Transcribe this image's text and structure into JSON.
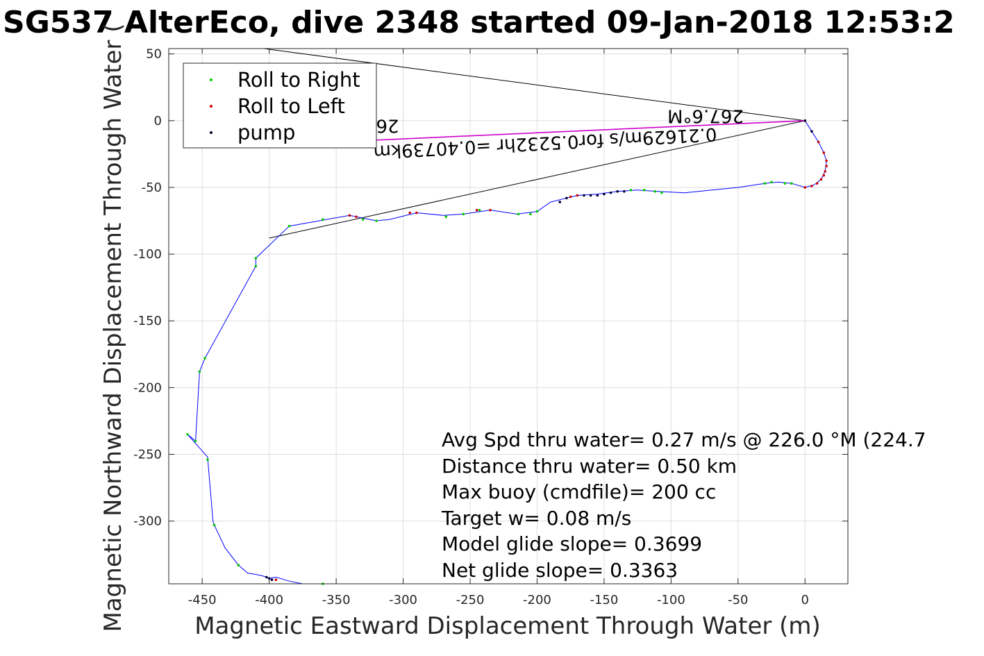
{
  "colors": {
    "track": "#0000ff",
    "roll_right": "#00cc00",
    "roll_left": "#cc0000",
    "pump": "#000033",
    "current_vector": "#cc00cc",
    "grid": "#dddddd",
    "axes": "#262626"
  },
  "chart_data": {
    "type": "line",
    "title": "SG537 AlterEco, dive 2348 started 09-Jan-2018 12:53:2",
    "xlabel": "Magnetic Eastward Displacement Through Water (m)",
    "ylabel": "Magnetic Northward Displacement Through Water (",
    "xlim": [
      -475,
      32
    ],
    "ylim": [
      -347,
      54
    ],
    "xticks": [
      -450,
      -400,
      -350,
      -300,
      -250,
      -200,
      -150,
      -100,
      -50,
      0
    ],
    "yticks": [
      50,
      0,
      -50,
      -100,
      -150,
      -200,
      -250,
      -300
    ],
    "xtick_labels": [
      "-450",
      "-400",
      "-350",
      "-300",
      "-250",
      "-200",
      "-150",
      "-100",
      "-50",
      "0"
    ],
    "ytick_labels": [
      "50",
      "0",
      "-50",
      "-100",
      "-150",
      "-200",
      "-250",
      "-300"
    ],
    "grid": true,
    "legend": {
      "placement": "top-left",
      "entries": [
        {
          "label": "Roll to Right",
          "color": "#00cc00"
        },
        {
          "label": "Roll to Left",
          "color": "#cc0000"
        },
        {
          "label": "pump",
          "color": "#000033"
        }
      ]
    },
    "series": [
      {
        "name": "track",
        "points": [
          [
            0,
            0
          ],
          [
            5,
            -8
          ],
          [
            10,
            -16
          ],
          [
            14,
            -24
          ],
          [
            16,
            -30
          ],
          [
            15,
            -38
          ],
          [
            12,
            -44
          ],
          [
            7,
            -48
          ],
          [
            0,
            -50
          ],
          [
            -10,
            -47
          ],
          [
            -20,
            -46
          ],
          [
            -30,
            -47
          ],
          [
            -50,
            -50
          ],
          [
            -90,
            -54
          ],
          [
            -110,
            -53
          ],
          [
            -125,
            -52
          ],
          [
            -140,
            -53
          ],
          [
            -155,
            -55
          ],
          [
            -170,
            -56
          ],
          [
            -178,
            -58
          ],
          [
            -190,
            -61
          ],
          [
            -200,
            -68
          ],
          [
            -215,
            -70
          ],
          [
            -235,
            -67
          ],
          [
            -255,
            -70
          ],
          [
            -270,
            -71
          ],
          [
            -290,
            -69
          ],
          [
            -310,
            -74
          ],
          [
            -320,
            -75
          ],
          [
            -340,
            -71
          ],
          [
            -385,
            -79
          ],
          [
            -410,
            -103
          ],
          [
            -410,
            -109
          ],
          [
            -448,
            -178
          ],
          [
            -452,
            -188
          ],
          [
            -455,
            -240
          ],
          [
            -461,
            -235
          ],
          [
            -446,
            -252
          ],
          [
            -442,
            -300
          ],
          [
            -441,
            -303
          ],
          [
            -433,
            -320
          ],
          [
            -423,
            -333
          ],
          [
            -416,
            -339
          ],
          [
            -410,
            -340
          ],
          [
            -405,
            -341
          ],
          [
            -400,
            -343
          ],
          [
            -395,
            -342
          ],
          [
            -385,
            -345
          ],
          [
            -375,
            -347
          ],
          [
            -360,
            -347
          ]
        ]
      },
      {
        "name": "Roll to Right",
        "points": [
          [
            -441,
            -303
          ],
          [
            -446,
            -254
          ],
          [
            -461,
            -235
          ],
          [
            -455,
            -240
          ],
          [
            -452,
            -188
          ],
          [
            -448,
            -178
          ],
          [
            -410,
            -103
          ],
          [
            -410,
            -109
          ],
          [
            -423,
            -333
          ],
          [
            -385,
            -79
          ],
          [
            -360,
            -74
          ],
          [
            -330,
            -74
          ],
          [
            -320,
            -75
          ],
          [
            -268,
            -72
          ],
          [
            -255,
            -70
          ],
          [
            -243,
            -67
          ],
          [
            -214,
            -70
          ],
          [
            -205,
            -70
          ],
          [
            -200,
            -68
          ],
          [
            -130,
            -52
          ],
          [
            -120,
            -52
          ],
          [
            -112,
            -53
          ],
          [
            -107,
            -54
          ],
          [
            -30,
            -47
          ],
          [
            -25,
            -46
          ],
          [
            -15,
            -47
          ],
          [
            -10,
            -47
          ],
          [
            -360,
            -347
          ]
        ]
      },
      {
        "name": "Roll to Left",
        "points": [
          [
            0,
            0
          ],
          [
            10,
            -16
          ],
          [
            14,
            -24
          ],
          [
            16,
            -30
          ],
          [
            16,
            -34
          ],
          [
            15,
            -38
          ],
          [
            14,
            -41
          ],
          [
            12,
            -44
          ],
          [
            9,
            -47
          ],
          [
            5,
            -49
          ],
          [
            0,
            -50
          ],
          [
            -340,
            -71
          ],
          [
            -335,
            -72
          ],
          [
            -295,
            -69
          ],
          [
            -290,
            -69
          ],
          [
            -245,
            -67
          ],
          [
            -235,
            -67
          ],
          [
            -175,
            -57
          ],
          [
            -170,
            -56
          ],
          [
            -395,
            -344
          ]
        ]
      },
      {
        "name": "pump",
        "points": [
          [
            -183,
            -61
          ],
          [
            -178,
            -58
          ],
          [
            -165,
            -56
          ],
          [
            -160,
            -56
          ],
          [
            -155,
            -56
          ],
          [
            -150,
            -55
          ],
          [
            -145,
            -54
          ],
          [
            -140,
            -53
          ],
          [
            -135,
            -53
          ],
          [
            -402,
            -342
          ],
          [
            -400,
            -343
          ],
          [
            -398,
            -344
          ],
          [
            0,
            0
          ],
          [
            5,
            -8
          ]
        ]
      }
    ],
    "annotation_lines": [
      {
        "from": [
          0,
          0
        ],
        "to": [
          -404,
          54
        ],
        "color": "#000000"
      },
      {
        "from": [
          0,
          0
        ],
        "to": [
          -400,
          -88
        ],
        "color": "#000000"
      },
      {
        "from": [
          0,
          0
        ],
        "to": [
          -330,
          -15
        ],
        "color": "#cc00cc"
      }
    ],
    "flipped_labels": {
      "heading": "267.6°M",
      "current": "0.21629m/s for0.5232hr =0.40739km",
      "partial": "26"
    },
    "stats": [
      "Avg Spd thru water=  0.27 m/s @ 226.0 °M (224.7",
      "Distance thru water=  0.50 km",
      "Max buoy (cmdfile)= 200 cc",
      "Target w= 0.08 m/s",
      "Model glide slope= 0.3699",
      "Net glide slope= 0.3363"
    ]
  }
}
